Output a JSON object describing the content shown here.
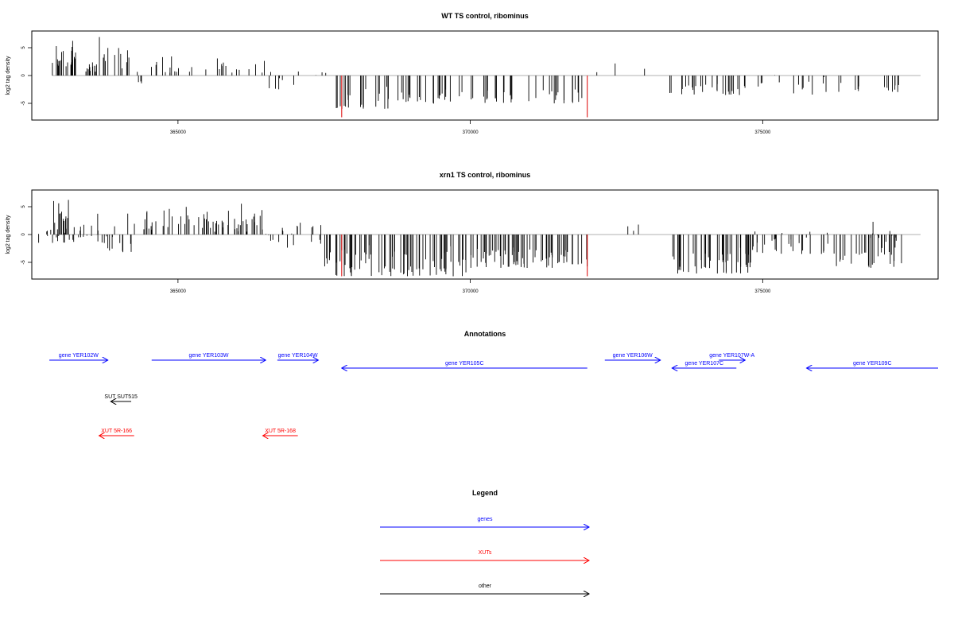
{
  "colors": {
    "gene": "#0000ff",
    "xut": "#ff0000",
    "other": "#000000",
    "marker": "#dd0000"
  },
  "chart_data": [
    {
      "type": "bar",
      "title": "WT TS control, ribominus",
      "ylabel": "log2 tag density",
      "xlabel": "",
      "xlim": [
        362500,
        378000
      ],
      "ylim": [
        -8,
        8
      ],
      "xticks": [
        365000,
        370000,
        375000
      ],
      "xtick_labels": [
        "365000",
        "370000",
        "375000"
      ],
      "yticks": [
        5,
        0,
        -5
      ],
      "ytick_labels": [
        "5",
        "0",
        "-5"
      ],
      "marker_lines_x": [
        367800,
        372000
      ],
      "marker_lines_y": -7.5,
      "segments": [
        {
          "x0": 362850,
          "x1": 363250,
          "min": 1.5,
          "max": 7.5,
          "density": 22
        },
        {
          "x0": 363300,
          "x1": 363600,
          "min": 0.5,
          "max": 3,
          "density": 10
        },
        {
          "x0": 363600,
          "x1": 364250,
          "min": 1,
          "max": 7.5,
          "density": 14
        },
        {
          "x0": 364300,
          "x1": 364500,
          "min": -1.5,
          "max": -0.5,
          "density": 3
        },
        {
          "x0": 364000,
          "x1": 366500,
          "min": 0.5,
          "max": 4.5,
          "density": 28
        },
        {
          "x0": 366500,
          "x1": 366800,
          "min": -2.5,
          "max": 3,
          "density": 6
        },
        {
          "x0": 366800,
          "x1": 367600,
          "min": -2,
          "max": 2.5,
          "density": 5
        },
        {
          "x0": 367700,
          "x1": 369500,
          "min": -6,
          "max": -1.5,
          "density": 40
        },
        {
          "x0": 369500,
          "x1": 372000,
          "min": -5,
          "max": -1.5,
          "density": 40
        },
        {
          "x0": 372100,
          "x1": 373000,
          "min": 0.5,
          "max": 2.5,
          "density": 3
        },
        {
          "x0": 373400,
          "x1": 374700,
          "min": -3.5,
          "max": -1,
          "density": 28
        },
        {
          "x0": 374800,
          "x1": 376200,
          "min": -3.5,
          "max": 1.5,
          "density": 14
        },
        {
          "x0": 376200,
          "x1": 377400,
          "min": -3,
          "max": -0.5,
          "density": 14
        }
      ]
    },
    {
      "type": "bar",
      "title": "xrn1 TS control, ribominus",
      "ylabel": "log2 tag density",
      "xlabel": "",
      "xlim": [
        362500,
        378000
      ],
      "ylim": [
        -8,
        8
      ],
      "xticks": [
        365000,
        370000,
        375000
      ],
      "xtick_labels": [
        "365000",
        "370000",
        "375000"
      ],
      "yticks": [
        5,
        0,
        -5
      ],
      "ytick_labels": [
        "5",
        "0",
        "-5"
      ],
      "marker_lines_x": [
        367800,
        372000
      ],
      "marker_lines_y": -7.5,
      "segments": [
        {
          "x0": 362550,
          "x1": 362850,
          "min": -1.5,
          "max": 2.5,
          "density": 6
        },
        {
          "x0": 362850,
          "x1": 363250,
          "min": -1.5,
          "max": 7.5,
          "density": 26
        },
        {
          "x0": 363300,
          "x1": 363600,
          "min": -0.5,
          "max": 3,
          "density": 10
        },
        {
          "x0": 363600,
          "x1": 364300,
          "min": -4,
          "max": 7,
          "density": 20
        },
        {
          "x0": 364300,
          "x1": 366500,
          "min": 0.5,
          "max": 6,
          "density": 60
        },
        {
          "x0": 366500,
          "x1": 367500,
          "min": -2.5,
          "max": 4,
          "density": 20
        },
        {
          "x0": 367500,
          "x1": 370000,
          "min": -7.5,
          "max": -1.5,
          "density": 80
        },
        {
          "x0": 370000,
          "x1": 372000,
          "min": -6,
          "max": -1.5,
          "density": 70
        },
        {
          "x0": 372500,
          "x1": 373000,
          "min": 0.5,
          "max": 2,
          "density": 3
        },
        {
          "x0": 373400,
          "x1": 374800,
          "min": -7,
          "max": -2,
          "density": 50
        },
        {
          "x0": 374800,
          "x1": 376200,
          "min": -3.5,
          "max": 2,
          "density": 30
        },
        {
          "x0": 376200,
          "x1": 377400,
          "min": -6,
          "max": 3,
          "density": 40
        }
      ]
    }
  ],
  "annotations": {
    "title": "Annotations",
    "items": [
      {
        "label": "gene YER102W",
        "kind": "gene",
        "x0": 362800,
        "x1": 363800,
        "dir": "right",
        "row": 0
      },
      {
        "label": "gene YER103W",
        "kind": "gene",
        "x0": 364550,
        "x1": 366500,
        "dir": "right",
        "row": 0
      },
      {
        "label": "gene YER104W",
        "kind": "gene",
        "x0": 366700,
        "x1": 367400,
        "dir": "right",
        "row": 0
      },
      {
        "label": "gene YER105C",
        "kind": "gene",
        "x0": 367800,
        "x1": 372000,
        "dir": "left",
        "row": 1
      },
      {
        "label": "gene YER106W",
        "kind": "gene",
        "x0": 372300,
        "x1": 373250,
        "dir": "right",
        "row": 0
      },
      {
        "label": "gene YER107C",
        "kind": "gene",
        "x0": 373450,
        "x1": 374550,
        "dir": "left",
        "row": 1
      },
      {
        "label": "gene YER107W-A",
        "kind": "gene",
        "x0": 374250,
        "x1": 374700,
        "dir": "right",
        "row": 0
      },
      {
        "label": "gene YER109C",
        "kind": "gene",
        "x0": 375750,
        "x1": 378000,
        "dir": "left",
        "row": 1
      },
      {
        "label": "SUT SUT515",
        "kind": "other",
        "x0": 363850,
        "x1": 364200,
        "dir": "left",
        "row": 2
      },
      {
        "label": "XUT 5R-166",
        "kind": "xut",
        "x0": 363650,
        "x1": 364250,
        "dir": "left",
        "row": 3
      },
      {
        "label": "XUT 5R-168",
        "kind": "xut",
        "x0": 366450,
        "x1": 367050,
        "dir": "left",
        "row": 3
      }
    ]
  },
  "legend": {
    "title": "Legend",
    "items": [
      {
        "label": "genes",
        "kind": "gene"
      },
      {
        "label": "XUTs",
        "kind": "xut"
      },
      {
        "label": "other",
        "kind": "other"
      }
    ]
  }
}
